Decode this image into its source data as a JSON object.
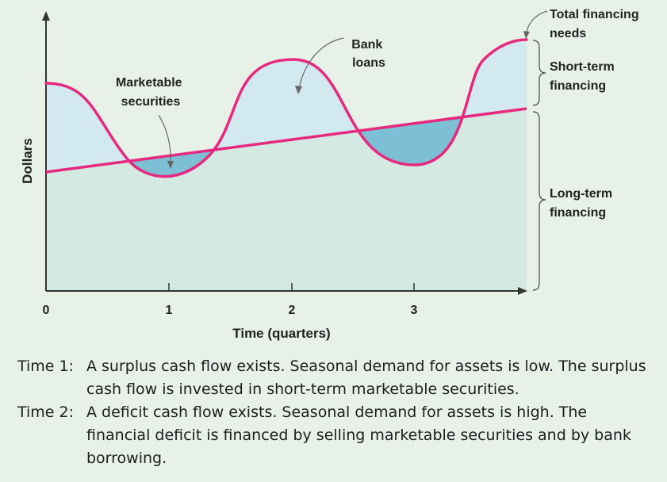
{
  "diagram": {
    "axis": {
      "y_label": "Dollars",
      "x_label": "Time (quarters)",
      "x_ticks": [
        "0",
        "1",
        "2",
        "3"
      ]
    },
    "annotations": {
      "marketable_securities": [
        "Marketable",
        "securities"
      ],
      "bank_loans": [
        "Bank",
        "loans"
      ],
      "total_financing_needs": [
        "Total financing",
        "needs"
      ],
      "short_term_financing": [
        "Short-term",
        "financing"
      ],
      "long_term_financing": [
        "Long-term",
        "financing"
      ]
    },
    "colors": {
      "background": "#e7f1e8",
      "long_term_area": "#d4e9e1",
      "short_term_area": "#d3e9f0",
      "securities_area": "#7dbfd4",
      "curve": "#e6297e",
      "axis": "#333333"
    }
  },
  "notes": [
    {
      "key": "Time 1:",
      "text": "A surplus cash flow exists. Seasonal demand for assets is low. The surplus cash flow is invested in short-term marketable securities."
    },
    {
      "key": "Time 2:",
      "text": "A deficit cash flow exists. Seasonal demand for assets is high. The financial deficit is financed by selling marketable securities and by bank borrowing."
    }
  ]
}
